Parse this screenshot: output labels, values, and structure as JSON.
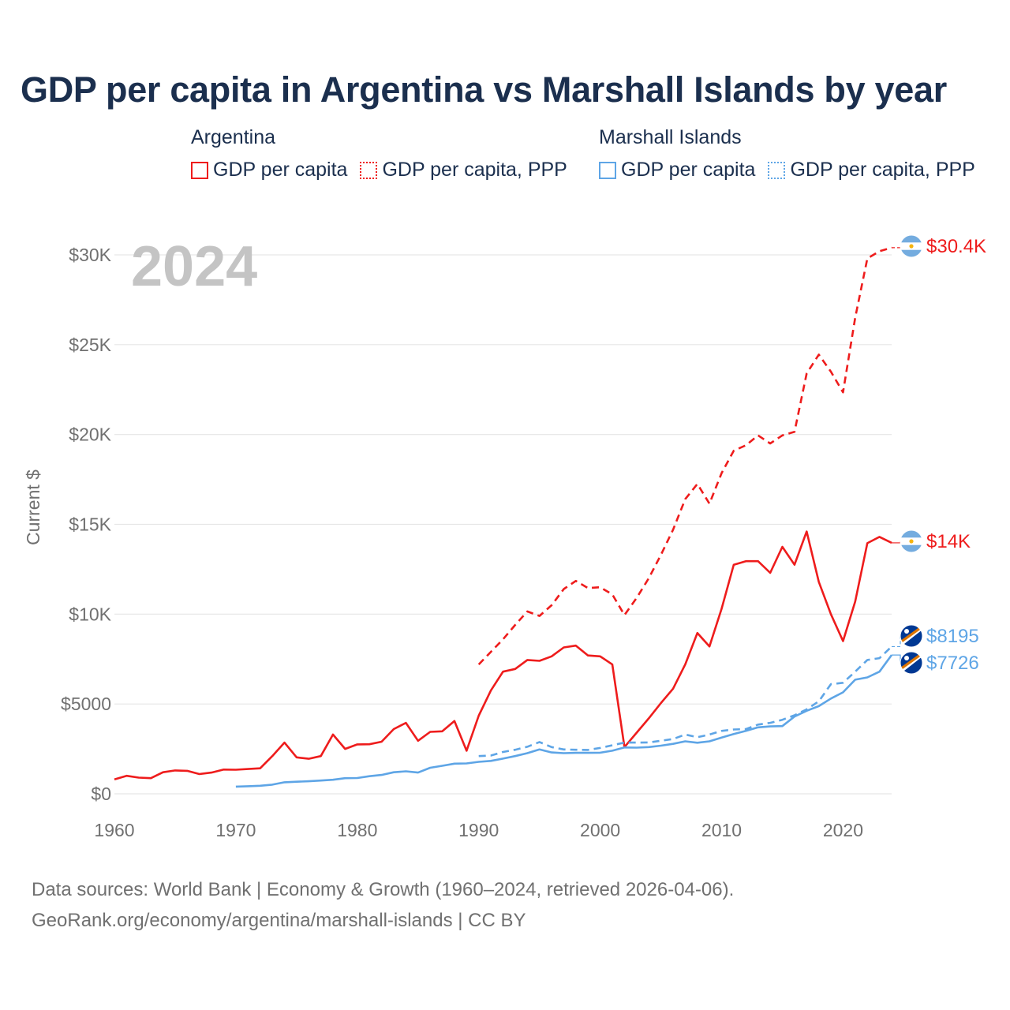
{
  "title": "GDP per capita in Argentina vs Marshall Islands by year",
  "legend": {
    "groups": [
      {
        "country": "Argentina",
        "items": [
          {
            "label": "GDP per capita",
            "style": "solid",
            "color": "#ee1c1c"
          },
          {
            "label": "GDP per capita, PPP",
            "style": "dotted",
            "color": "#ee1c1c"
          }
        ]
      },
      {
        "country": "Marshall Islands",
        "items": [
          {
            "label": "GDP per capita",
            "style": "solid",
            "color": "#5ea5e6"
          },
          {
            "label": "GDP per capita, PPP",
            "style": "dotted",
            "color": "#5ea5e6"
          }
        ]
      }
    ]
  },
  "year_watermark": "2024",
  "footer": {
    "line1": "Data sources: World Bank | Economy & Growth (1960–2024, retrieved 2026-04-06).",
    "line2": "GeoRank.org/economy/argentina/marshall-islands | CC BY"
  },
  "chart_data": {
    "type": "line",
    "title": "GDP per capita in Argentina vs Marshall Islands by year",
    "xlabel": "",
    "ylabel": "Current $",
    "xlim": [
      1960,
      2024
    ],
    "ylim": [
      0,
      31000
    ],
    "x_ticks": [
      1960,
      1970,
      1980,
      1990,
      2000,
      2010,
      2020
    ],
    "x_tick_labels": [
      "1960",
      "1970",
      "1980",
      "1990",
      "2000",
      "2010",
      "2020"
    ],
    "y_ticks": [
      0,
      5000,
      10000,
      15000,
      20000,
      25000,
      30000
    ],
    "y_tick_labels": [
      "$0",
      "$5000",
      "$10K",
      "$15K",
      "$20K",
      "$25K",
      "$30K"
    ],
    "grid": true,
    "colors": {
      "argentina": "#ee1c1c",
      "marshall": "#5ea5e6"
    },
    "series": [
      {
        "name": "Argentina GDP per capita",
        "country": "Argentina",
        "dashed": false,
        "color": "#ee1c1c",
        "end_label": "$14K",
        "flag": "argentina",
        "points": [
          [
            1960,
            800
          ],
          [
            1961,
            1000
          ],
          [
            1962,
            900
          ],
          [
            1963,
            870
          ],
          [
            1964,
            1200
          ],
          [
            1965,
            1300
          ],
          [
            1966,
            1280
          ],
          [
            1967,
            1100
          ],
          [
            1968,
            1180
          ],
          [
            1969,
            1350
          ],
          [
            1970,
            1340
          ],
          [
            1971,
            1380
          ],
          [
            1972,
            1420
          ],
          [
            1973,
            2100
          ],
          [
            1974,
            2850
          ],
          [
            1975,
            2030
          ],
          [
            1976,
            1950
          ],
          [
            1977,
            2100
          ],
          [
            1978,
            3300
          ],
          [
            1979,
            2500
          ],
          [
            1980,
            2750
          ],
          [
            1981,
            2760
          ],
          [
            1982,
            2900
          ],
          [
            1983,
            3600
          ],
          [
            1984,
            3950
          ],
          [
            1985,
            2950
          ],
          [
            1986,
            3450
          ],
          [
            1987,
            3480
          ],
          [
            1988,
            4050
          ],
          [
            1989,
            2400
          ],
          [
            1990,
            4350
          ],
          [
            1991,
            5750
          ],
          [
            1992,
            6800
          ],
          [
            1993,
            6950
          ],
          [
            1994,
            7450
          ],
          [
            1995,
            7400
          ],
          [
            1996,
            7650
          ],
          [
            1997,
            8150
          ],
          [
            1998,
            8250
          ],
          [
            1999,
            7700
          ],
          [
            2000,
            7650
          ],
          [
            2001,
            7200
          ],
          [
            2002,
            2600
          ],
          [
            2003,
            3400
          ],
          [
            2004,
            4200
          ],
          [
            2005,
            5050
          ],
          [
            2006,
            5850
          ],
          [
            2007,
            7200
          ],
          [
            2008,
            8950
          ],
          [
            2009,
            8200
          ],
          [
            2010,
            10300
          ],
          [
            2011,
            12750
          ],
          [
            2012,
            12950
          ],
          [
            2013,
            12950
          ],
          [
            2014,
            12300
          ],
          [
            2015,
            13750
          ],
          [
            2016,
            12750
          ],
          [
            2017,
            14600
          ],
          [
            2018,
            11800
          ],
          [
            2019,
            10000
          ],
          [
            2020,
            8500
          ],
          [
            2021,
            10700
          ],
          [
            2022,
            13950
          ],
          [
            2023,
            14300
          ],
          [
            2024,
            13970
          ]
        ]
      },
      {
        "name": "Argentina GDP per capita, PPP",
        "country": "Argentina",
        "dashed": true,
        "color": "#ee1c1c",
        "end_label": "$30.4K",
        "flag": "argentina",
        "points": [
          [
            1990,
            7200
          ],
          [
            1991,
            7900
          ],
          [
            1992,
            8600
          ],
          [
            1993,
            9400
          ],
          [
            1994,
            10150
          ],
          [
            1995,
            9900
          ],
          [
            1996,
            10500
          ],
          [
            1997,
            11400
          ],
          [
            1998,
            11850
          ],
          [
            1999,
            11450
          ],
          [
            2000,
            11500
          ],
          [
            2001,
            11100
          ],
          [
            2002,
            9950
          ],
          [
            2003,
            10900
          ],
          [
            2004,
            12000
          ],
          [
            2005,
            13300
          ],
          [
            2006,
            14700
          ],
          [
            2007,
            16400
          ],
          [
            2008,
            17250
          ],
          [
            2009,
            16150
          ],
          [
            2010,
            17850
          ],
          [
            2011,
            19100
          ],
          [
            2012,
            19400
          ],
          [
            2013,
            19950
          ],
          [
            2014,
            19500
          ],
          [
            2015,
            19950
          ],
          [
            2016,
            20150
          ],
          [
            2017,
            23400
          ],
          [
            2018,
            24450
          ],
          [
            2019,
            23500
          ],
          [
            2020,
            22350
          ],
          [
            2021,
            26500
          ],
          [
            2022,
            29800
          ],
          [
            2023,
            30200
          ],
          [
            2024,
            30400
          ]
        ]
      },
      {
        "name": "Marshall Islands GDP per capita",
        "country": "Marshall Islands",
        "dashed": false,
        "color": "#5ea5e6",
        "end_label": "$7726",
        "flag": "marshall",
        "points": [
          [
            1970,
            400
          ],
          [
            1971,
            420
          ],
          [
            1972,
            450
          ],
          [
            1973,
            510
          ],
          [
            1974,
            640
          ],
          [
            1975,
            670
          ],
          [
            1976,
            700
          ],
          [
            1977,
            740
          ],
          [
            1978,
            780
          ],
          [
            1979,
            870
          ],
          [
            1980,
            880
          ],
          [
            1981,
            980
          ],
          [
            1982,
            1050
          ],
          [
            1983,
            1200
          ],
          [
            1984,
            1250
          ],
          [
            1985,
            1180
          ],
          [
            1986,
            1450
          ],
          [
            1987,
            1560
          ],
          [
            1988,
            1680
          ],
          [
            1989,
            1690
          ],
          [
            1990,
            1780
          ],
          [
            1991,
            1830
          ],
          [
            1992,
            1960
          ],
          [
            1993,
            2100
          ],
          [
            1994,
            2260
          ],
          [
            1995,
            2470
          ],
          [
            1996,
            2300
          ],
          [
            1997,
            2260
          ],
          [
            1998,
            2280
          ],
          [
            1999,
            2280
          ],
          [
            2000,
            2290
          ],
          [
            2001,
            2400
          ],
          [
            2002,
            2580
          ],
          [
            2003,
            2570
          ],
          [
            2004,
            2600
          ],
          [
            2005,
            2680
          ],
          [
            2006,
            2780
          ],
          [
            2007,
            2920
          ],
          [
            2008,
            2840
          ],
          [
            2009,
            2920
          ],
          [
            2010,
            3130
          ],
          [
            2011,
            3330
          ],
          [
            2012,
            3500
          ],
          [
            2013,
            3700
          ],
          [
            2014,
            3750
          ],
          [
            2015,
            3770
          ],
          [
            2016,
            4300
          ],
          [
            2017,
            4620
          ],
          [
            2018,
            4880
          ],
          [
            2019,
            5300
          ],
          [
            2020,
            5650
          ],
          [
            2021,
            6350
          ],
          [
            2022,
            6480
          ],
          [
            2023,
            6800
          ],
          [
            2024,
            7726
          ]
        ]
      },
      {
        "name": "Marshall Islands GDP per capita, PPP",
        "country": "Marshall Islands",
        "dashed": true,
        "color": "#5ea5e6",
        "end_label": "$8195",
        "flag": "marshall",
        "points": [
          [
            1990,
            2100
          ],
          [
            1991,
            2130
          ],
          [
            1992,
            2330
          ],
          [
            1993,
            2450
          ],
          [
            1994,
            2620
          ],
          [
            1995,
            2880
          ],
          [
            1996,
            2600
          ],
          [
            1997,
            2470
          ],
          [
            1998,
            2450
          ],
          [
            1999,
            2440
          ],
          [
            2000,
            2550
          ],
          [
            2001,
            2700
          ],
          [
            2002,
            2850
          ],
          [
            2003,
            2850
          ],
          [
            2004,
            2860
          ],
          [
            2005,
            2950
          ],
          [
            2006,
            3050
          ],
          [
            2007,
            3300
          ],
          [
            2008,
            3150
          ],
          [
            2009,
            3300
          ],
          [
            2010,
            3500
          ],
          [
            2011,
            3580
          ],
          [
            2012,
            3600
          ],
          [
            2013,
            3850
          ],
          [
            2014,
            3950
          ],
          [
            2015,
            4120
          ],
          [
            2016,
            4370
          ],
          [
            2017,
            4700
          ],
          [
            2018,
            5150
          ],
          [
            2019,
            6100
          ],
          [
            2020,
            6180
          ],
          [
            2021,
            6800
          ],
          [
            2022,
            7450
          ],
          [
            2023,
            7550
          ],
          [
            2024,
            8195
          ]
        ]
      }
    ],
    "end_labels": [
      {
        "text": "$30.4K",
        "series": 1,
        "color": "#ee1c1c",
        "flag": "argentina"
      },
      {
        "text": "$14K",
        "series": 0,
        "color": "#ee1c1c",
        "flag": "argentina"
      },
      {
        "text": "$8195",
        "series": 3,
        "color": "#5ea5e6",
        "flag": "marshall"
      },
      {
        "text": "$7726",
        "series": 2,
        "color": "#5ea5e6",
        "flag": "marshall"
      }
    ]
  }
}
